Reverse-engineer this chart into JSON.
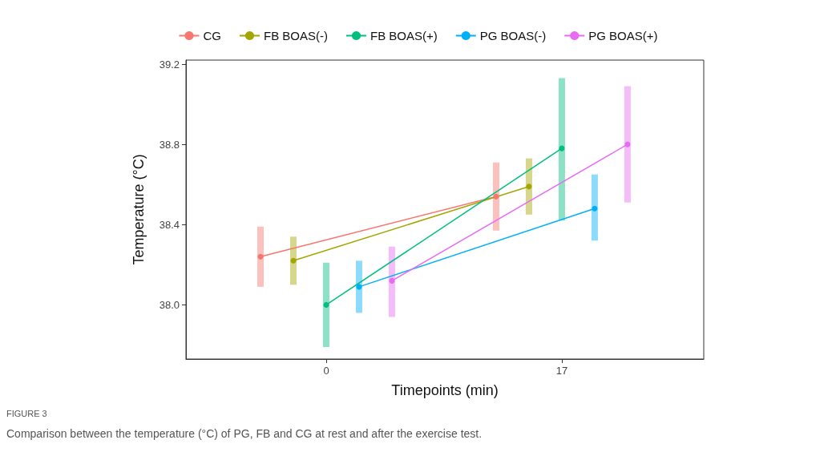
{
  "chart_data": {
    "type": "line",
    "xlabel": "Timepoints (min)",
    "ylabel": "Temperature (°C)",
    "xlim": [
      -10.12,
      27.24
    ],
    "xticks": [
      0,
      17
    ],
    "ylim": [
      37.73,
      39.22
    ],
    "yticks": [
      {
        "value": 38,
        "label": "38.0"
      },
      38.4,
      38.8,
      39.2
    ],
    "grid": false,
    "legend": "top",
    "marker": "circle",
    "line_style": "solid",
    "series": [
      {
        "name": "CG",
        "color": "#f8766d",
        "x": [
          -4.74,
          12.26
        ],
        "values": [
          38.24,
          38.54
        ],
        "errors": [
          [
            38.09,
            38.39
          ],
          [
            38.37,
            38.71
          ]
        ]
      },
      {
        "name": "FB BOAS(-)",
        "color": "#a3a500",
        "x": [
          -2.37,
          14.63
        ],
        "values": [
          38.22,
          38.59
        ],
        "errors": [
          [
            38.1,
            38.34
          ],
          [
            38.45,
            38.73
          ]
        ]
      },
      {
        "name": "FB BOAS(+)",
        "color": "#00bf7d",
        "x": [
          0,
          17
        ],
        "values": [
          38.0,
          38.78
        ],
        "errors": [
          [
            37.79,
            38.21
          ],
          [
            38.42,
            39.13
          ]
        ]
      },
      {
        "name": "PG BOAS(-)",
        "color": "#00b0f6",
        "x": [
          2.37,
          19.37
        ],
        "values": [
          38.09,
          38.48
        ],
        "errors": [
          [
            37.96,
            38.22
          ],
          [
            38.32,
            38.65
          ]
        ]
      },
      {
        "name": "PG BOAS(+)",
        "color": "#e76bf3",
        "x": [
          4.74,
          21.74
        ],
        "values": [
          38.12,
          38.8
        ],
        "errors": [
          [
            37.94,
            38.29
          ],
          [
            38.51,
            39.09
          ]
        ]
      }
    ],
    "annotations": [
      "FIGURE 3",
      "Comparison between the temperature (°C) of PG, FB and CG at rest and after the exercise test."
    ]
  }
}
